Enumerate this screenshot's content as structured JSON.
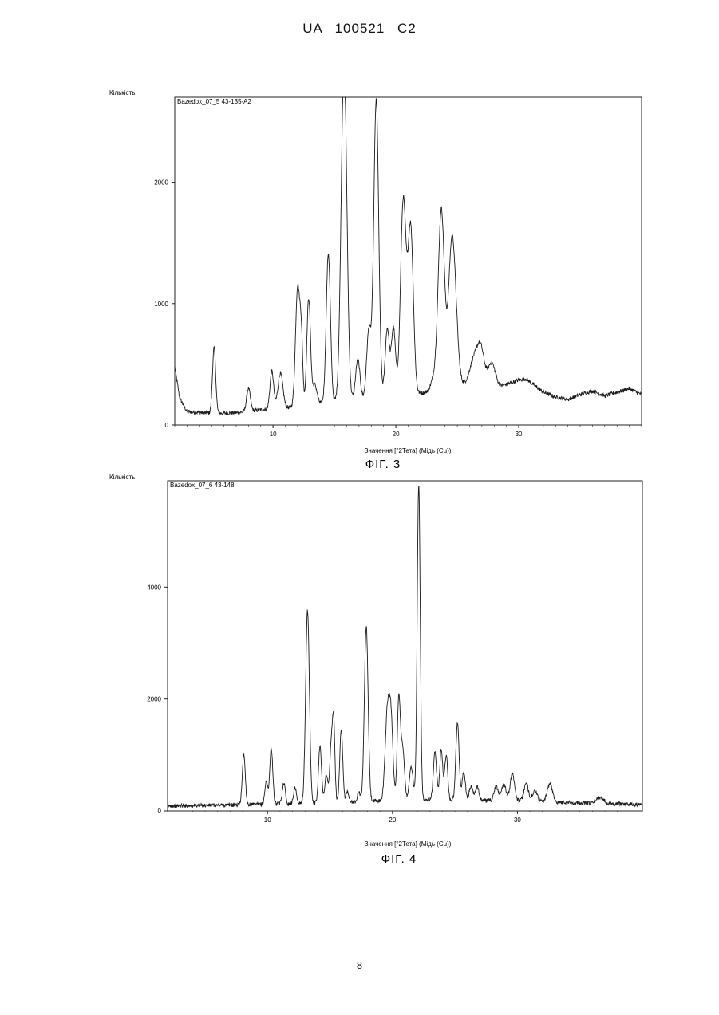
{
  "header": {
    "text": "UA   100521   C2"
  },
  "page_number": "8",
  "colors": {
    "line": "#1a1a1a",
    "frame": "#222222"
  },
  "chart_data": [
    {
      "type": "line",
      "figure_label": "ФІГ. 3",
      "sample_name": "Bazedox_07_5 43-135-A2",
      "ylabel": "Кількість",
      "xlabel": "Значення [°2Тета] (Мідь (Cu))",
      "xlim": [
        2,
        40
      ],
      "ylim": [
        0,
        2700
      ],
      "x_ticks": [
        "10",
        "20",
        "30"
      ],
      "y_ticks": [
        "0",
        "1000",
        "2000"
      ],
      "grid": false,
      "baseline": [
        [
          2,
          480
        ],
        [
          2.4,
          220
        ],
        [
          3,
          110
        ],
        [
          5,
          95
        ],
        [
          7,
          100
        ],
        [
          9,
          125
        ],
        [
          11,
          140
        ],
        [
          13,
          165
        ],
        [
          15,
          190
        ],
        [
          17,
          210
        ],
        [
          19,
          230
        ],
        [
          21,
          250
        ],
        [
          22,
          260
        ],
        [
          24,
          300
        ],
        [
          25,
          360
        ],
        [
          26,
          300
        ],
        [
          28,
          300
        ],
        [
          30,
          370
        ],
        [
          30.6,
          380
        ],
        [
          32,
          270
        ],
        [
          33,
          230
        ],
        [
          34,
          210
        ],
        [
          35,
          250
        ],
        [
          36,
          280
        ],
        [
          37,
          240
        ],
        [
          38,
          270
        ],
        [
          39,
          300
        ],
        [
          40,
          250
        ]
      ],
      "peaks": [
        [
          5.2,
          540,
          0.13
        ],
        [
          8.0,
          190,
          0.15
        ],
        [
          9.9,
          310,
          0.15
        ],
        [
          10.6,
          290,
          0.2
        ],
        [
          12.0,
          980,
          0.17
        ],
        [
          12.3,
          520,
          0.12
        ],
        [
          12.9,
          880,
          0.15
        ],
        [
          13.4,
          160,
          0.18
        ],
        [
          14.5,
          1230,
          0.17
        ],
        [
          15.8,
          2550,
          0.22
        ],
        [
          15.6,
          400,
          0.2
        ],
        [
          16.9,
          330,
          0.18
        ],
        [
          17.8,
          560,
          0.18
        ],
        [
          18.4,
          2450,
          0.2
        ],
        [
          19.3,
          560,
          0.17
        ],
        [
          19.8,
          560,
          0.17
        ],
        [
          20.6,
          1600,
          0.22
        ],
        [
          21.2,
          1380,
          0.22
        ],
        [
          23.1,
          100,
          0.25
        ],
        [
          23.7,
          1480,
          0.25
        ],
        [
          24.5,
          930,
          0.25
        ],
        [
          24.8,
          500,
          0.25
        ],
        [
          26.3,
          220,
          0.35
        ],
        [
          26.9,
          320,
          0.3
        ],
        [
          27.8,
          210,
          0.3
        ]
      ]
    },
    {
      "type": "line",
      "figure_label": "ФІГ. 4",
      "sample_name": "Bazedox_07_6 43-148",
      "ylabel": "Кількість",
      "xlabel": "Значення [°2Тета] (Мідь (Cu))",
      "xlim": [
        2,
        40
      ],
      "ylim": [
        0,
        5900
      ],
      "x_ticks": [
        "10",
        "20",
        "30"
      ],
      "y_ticks": [
        "0",
        "2000",
        "4000"
      ],
      "grid": false,
      "baseline": [
        [
          2,
          90
        ],
        [
          8,
          110
        ],
        [
          12,
          130
        ],
        [
          16,
          150
        ],
        [
          20,
          190
        ],
        [
          24,
          200
        ],
        [
          28,
          180
        ],
        [
          32,
          170
        ],
        [
          35,
          140
        ],
        [
          38,
          130
        ],
        [
          40,
          110
        ]
      ],
      "peaks": [
        [
          8.1,
          900,
          0.12
        ],
        [
          9.9,
          400,
          0.12
        ],
        [
          10.3,
          1000,
          0.12
        ],
        [
          11.3,
          380,
          0.12
        ],
        [
          12.2,
          280,
          0.12
        ],
        [
          13.2,
          3450,
          0.15
        ],
        [
          14.2,
          1030,
          0.12
        ],
        [
          14.7,
          500,
          0.12
        ],
        [
          15.1,
          1020,
          0.12
        ],
        [
          15.3,
          1290,
          0.1
        ],
        [
          15.9,
          1290,
          0.12
        ],
        [
          16.4,
          200,
          0.12
        ],
        [
          17.3,
          180,
          0.12
        ],
        [
          17.9,
          3120,
          0.15
        ],
        [
          19.6,
          1600,
          0.18
        ],
        [
          19.9,
          1250,
          0.15
        ],
        [
          20.5,
          1750,
          0.12
        ],
        [
          20.8,
          950,
          0.15
        ],
        [
          21.5,
          600,
          0.15
        ],
        [
          22.1,
          5650,
          0.12
        ],
        [
          23.4,
          850,
          0.13
        ],
        [
          23.9,
          900,
          0.12
        ],
        [
          24.3,
          800,
          0.12
        ],
        [
          25.2,
          1380,
          0.13
        ],
        [
          25.7,
          500,
          0.13
        ],
        [
          26.3,
          250,
          0.15
        ],
        [
          26.8,
          230,
          0.15
        ],
        [
          28.3,
          250,
          0.18
        ],
        [
          28.9,
          300,
          0.18
        ],
        [
          29.6,
          480,
          0.18
        ],
        [
          30.7,
          310,
          0.18
        ],
        [
          31.4,
          180,
          0.2
        ],
        [
          32.6,
          320,
          0.2
        ],
        [
          36.6,
          110,
          0.3
        ]
      ]
    }
  ]
}
